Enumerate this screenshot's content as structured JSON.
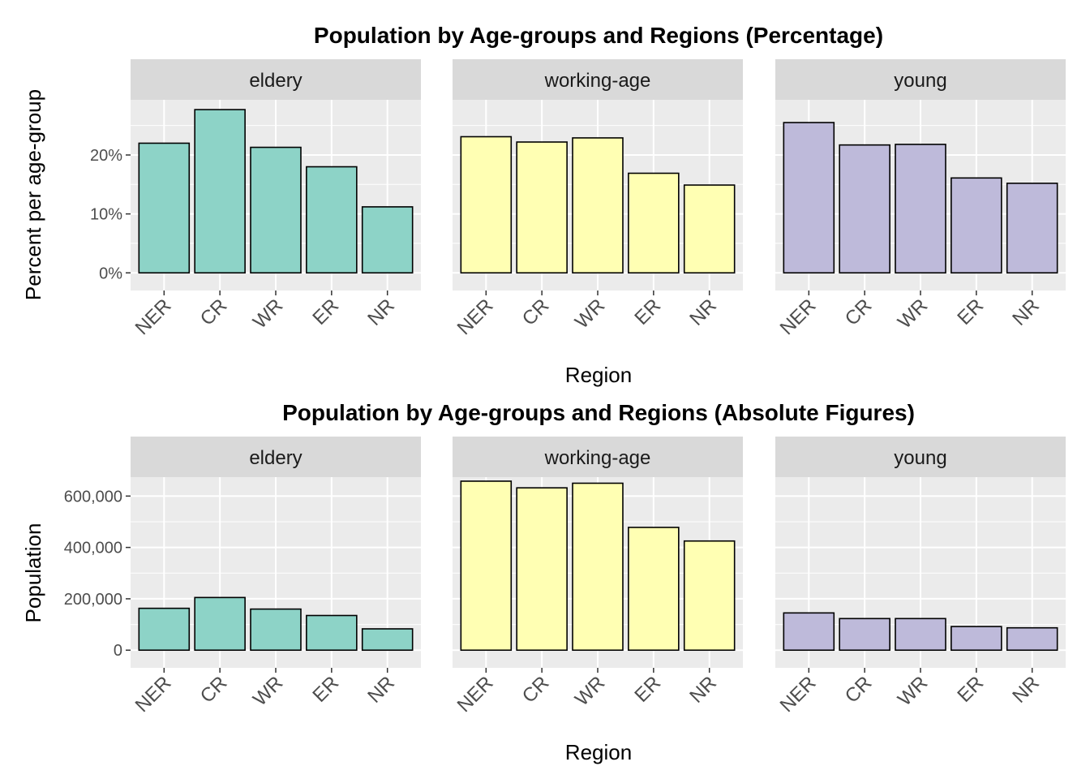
{
  "chart_data": [
    {
      "type": "bar",
      "title": "Population by Age-groups and Regions (Percentage)",
      "xlabel": "Region",
      "ylabel": "Percent per age-group",
      "categories": [
        "NER",
        "CR",
        "WR",
        "ER",
        "NR"
      ],
      "ylim": [
        0,
        0.3
      ],
      "yticks": [
        {
          "value": 0,
          "label": "0%"
        },
        {
          "value": 0.1,
          "label": "10%"
        },
        {
          "value": 0.2,
          "label": "20%"
        }
      ],
      "grid": true,
      "legend": "none",
      "panels": [
        {
          "name": "eldery",
          "color": "#8DD3C7",
          "values": [
            0.22,
            0.277,
            0.213,
            0.18,
            0.112
          ]
        },
        {
          "name": "working-age",
          "color": "#FFFFB3",
          "values": [
            0.231,
            0.222,
            0.229,
            0.169,
            0.149
          ]
        },
        {
          "name": "young",
          "color": "#BEBADA",
          "values": [
            0.255,
            0.217,
            0.218,
            0.161,
            0.152
          ]
        }
      ]
    },
    {
      "type": "bar",
      "title": "Population by Age-groups and Regions (Absolute Figures)",
      "xlabel": "Region",
      "ylabel": "Population",
      "categories": [
        "NER",
        "CR",
        "WR",
        "ER",
        "NR"
      ],
      "ylim": [
        0,
        680000
      ],
      "yticks": [
        {
          "value": 0,
          "label": "0"
        },
        {
          "value": 200000,
          "label": "200,000"
        },
        {
          "value": 400000,
          "label": "400,000"
        },
        {
          "value": 600000,
          "label": "600,000"
        }
      ],
      "grid": true,
      "legend": "none",
      "panels": [
        {
          "name": "eldery",
          "color": "#8DD3C7",
          "values": [
            163000,
            205000,
            160000,
            135000,
            83000
          ]
        },
        {
          "name": "working-age",
          "color": "#FFFFB3",
          "values": [
            658000,
            632000,
            650000,
            478000,
            425000
          ]
        },
        {
          "name": "young",
          "color": "#BEBADA",
          "values": [
            145000,
            123000,
            123000,
            92000,
            87000
          ]
        }
      ]
    }
  ]
}
